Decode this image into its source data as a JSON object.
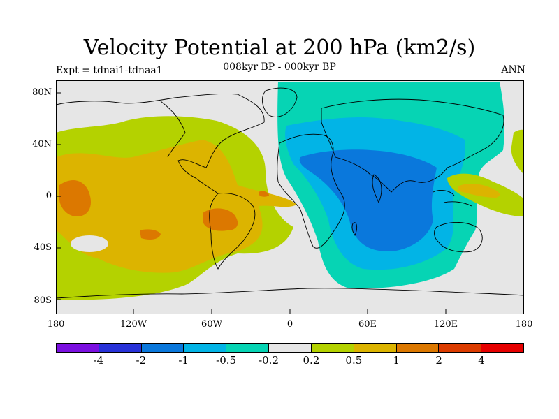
{
  "title": "Velocity Potential at 200 hPa (km2/s)",
  "subtitle": "008kyr BP - 000kyr BP",
  "left_label": "Expt = tdnai1-tdnaa1",
  "right_label": "ANN",
  "y_ticks": [
    "80N",
    "40N",
    "0",
    "40S",
    "80S"
  ],
  "x_ticks": [
    "180",
    "120W",
    "60W",
    "0",
    "60E",
    "120E",
    "180"
  ],
  "colorbar": {
    "colors": [
      "#7b10e0",
      "#2832d8",
      "#0a78dc",
      "#02b4e6",
      "#06d4b4",
      "#e6e6e6",
      "#b4d200",
      "#dcb400",
      "#dc7800",
      "#dc3c00",
      "#e60000"
    ],
    "labels": [
      "-4",
      "-2",
      "-1",
      "-0.5",
      "-0.2",
      "0.2",
      "0.5",
      "1",
      "2",
      "4"
    ]
  },
  "colors": {
    "neutral": "#e6e6e6",
    "light_green": "#b4d200",
    "orange_yellow": "#dcb400",
    "orange": "#dc7800",
    "teal": "#06d4b4",
    "cyan": "#02b4e6",
    "blue": "#0a78dc"
  }
}
